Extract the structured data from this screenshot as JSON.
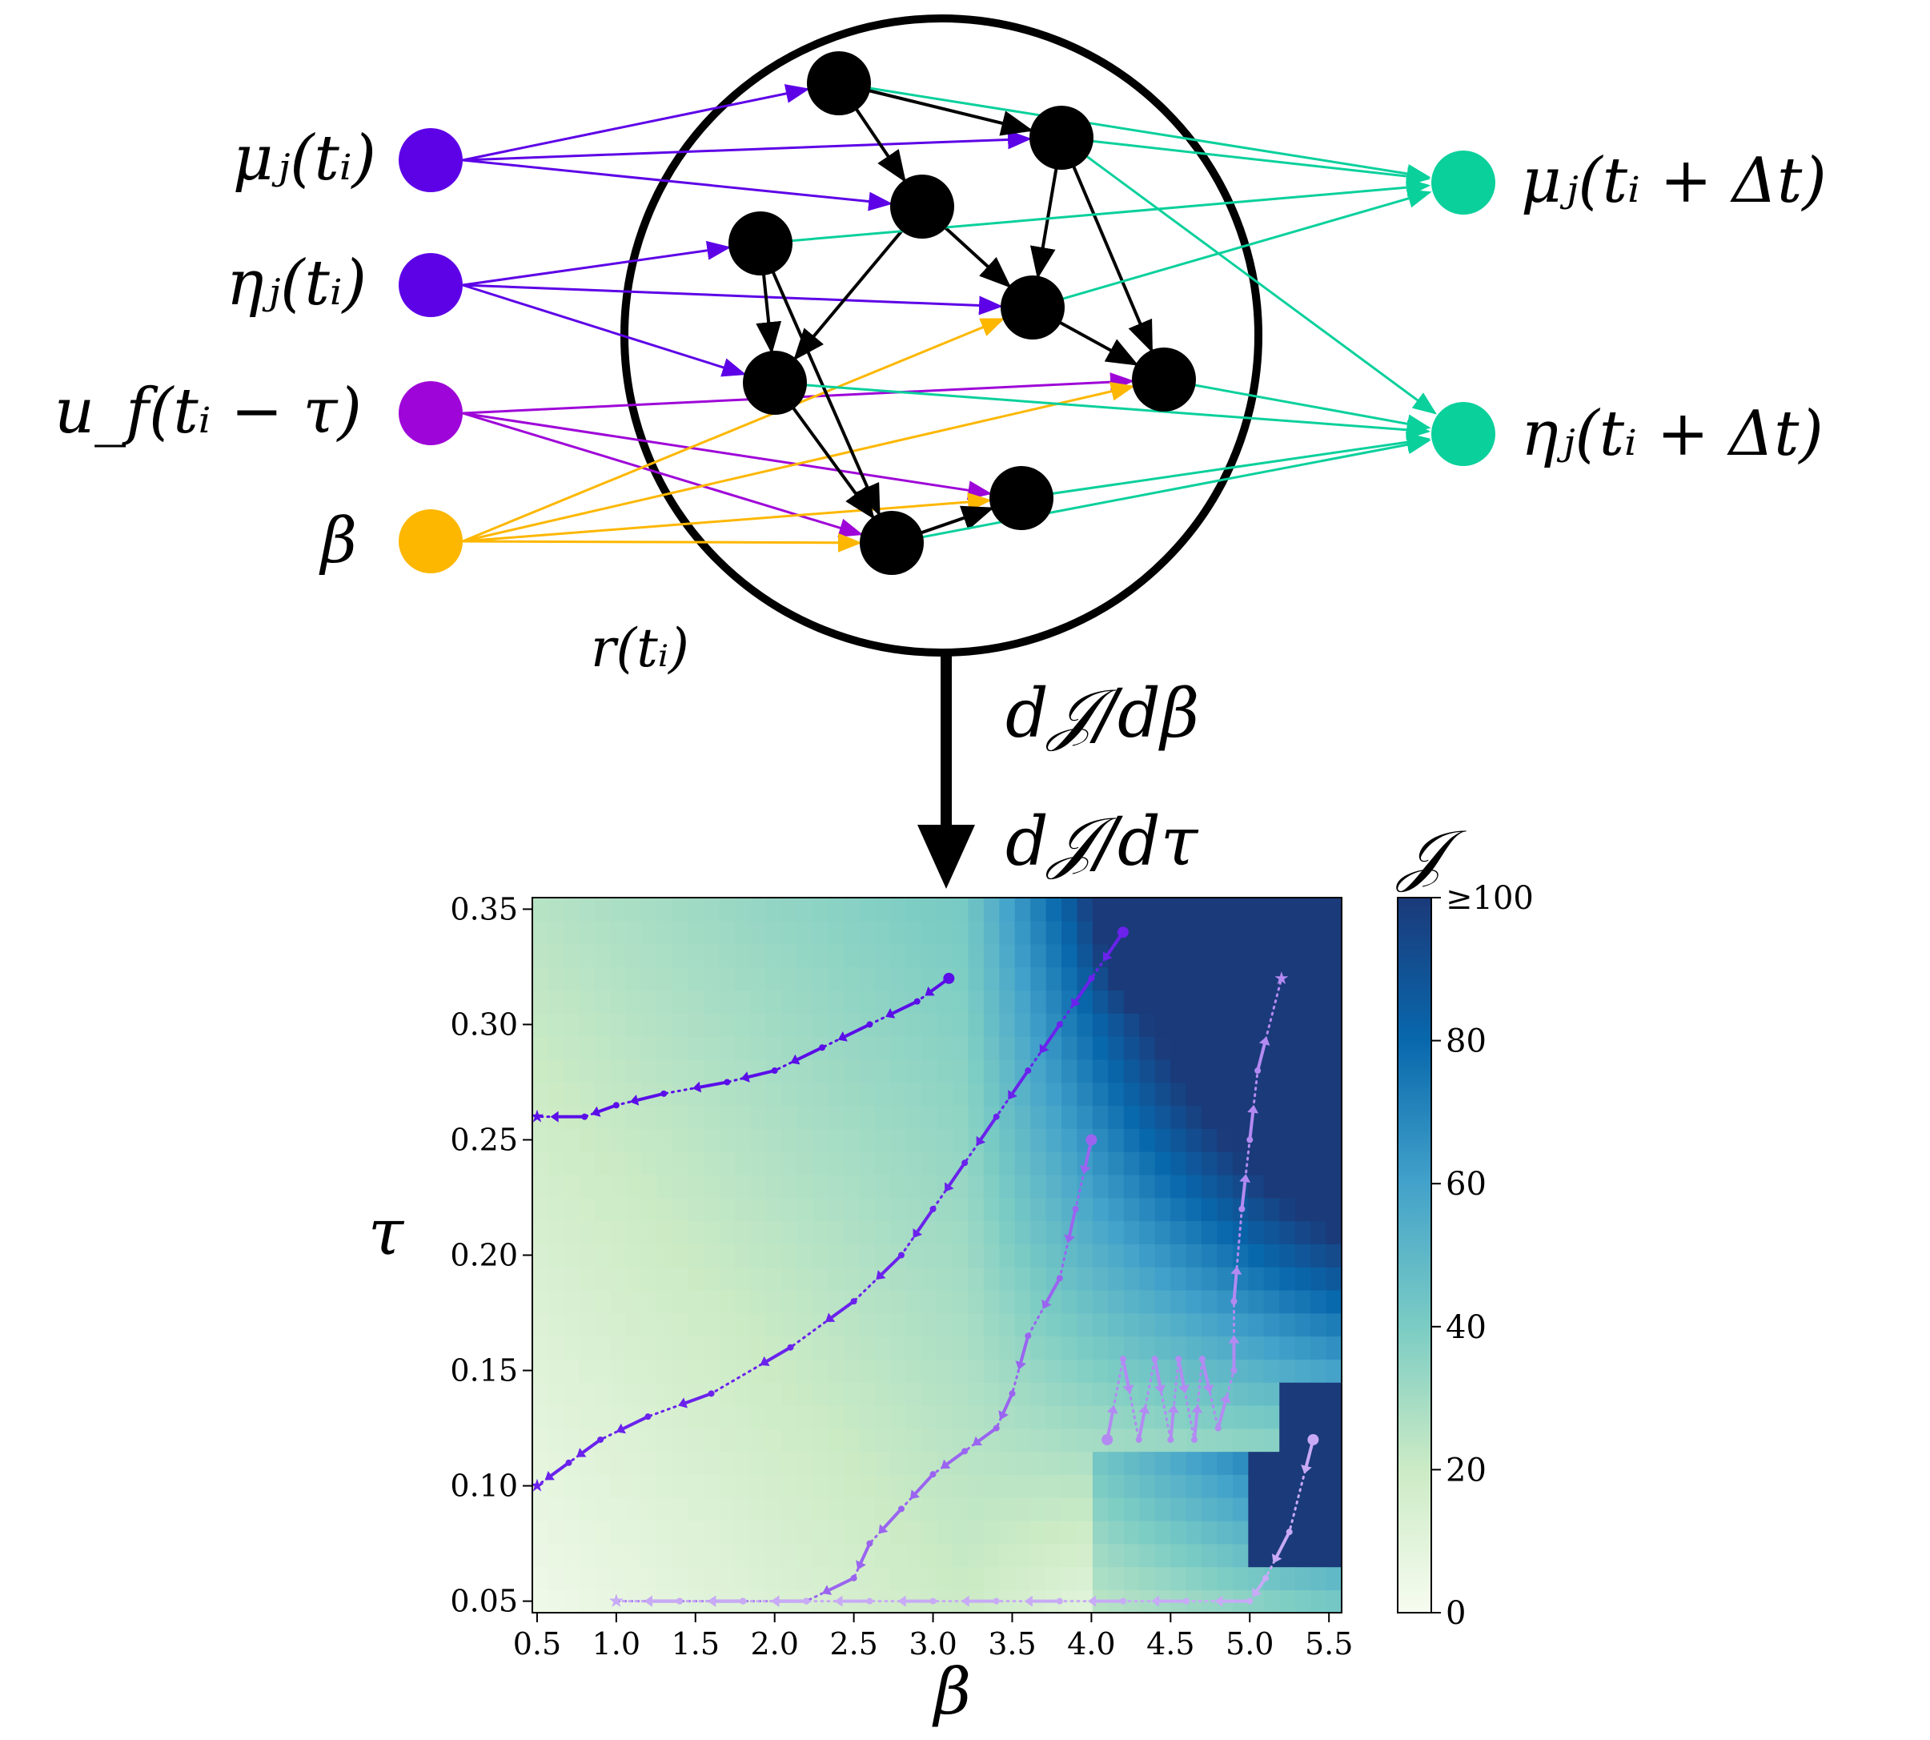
{
  "inputs": [
    {
      "label": "μⱼ(tᵢ)",
      "color": "#5d02e7"
    },
    {
      "label": "ηⱼ(tᵢ)",
      "color": "#5d02e7"
    },
    {
      "label": "u_f(tᵢ − τ)",
      "color": "#9e05d8"
    },
    {
      "label": "β",
      "color": "#fdb700"
    }
  ],
  "outputs": [
    {
      "label": "μⱼ(tᵢ + Δt)",
      "color": "#0ad09c"
    },
    {
      "label": "ηⱼ(tᵢ + Δt)",
      "color": "#0ad09c"
    }
  ],
  "reservoir_label": "r(tᵢ)",
  "gradient_labels": [
    "d𝒥/dβ",
    "d𝒥/dτ"
  ],
  "chart_data": {
    "type": "heatmap",
    "xlabel": "β",
    "ylabel": "τ",
    "x_ticks": [
      "0.5",
      "1.0",
      "1.5",
      "2.0",
      "2.5",
      "3.0",
      "3.5",
      "4.0",
      "4.5",
      "5.0",
      "5.5"
    ],
    "y_ticks": [
      "0.05",
      "0.10",
      "0.15",
      "0.20",
      "0.25",
      "0.30",
      "0.35"
    ],
    "xlim": [
      0.47,
      5.58
    ],
    "ylim": [
      0.045,
      0.355
    ],
    "colorbar": {
      "title": "𝒥",
      "ticks": [
        "0",
        "20",
        "40",
        "60",
        "80",
        "≥100"
      ],
      "range": [
        0,
        100
      ],
      "colors": [
        "#f7fcf0",
        "#ccebc5",
        "#7bccc4",
        "#43a2ca",
        "#0868ac",
        "#1b3a7a"
      ]
    },
    "trajectories": [
      {
        "color": "#5a0ee8",
        "points": [
          [
            3.1,
            0.32
          ],
          [
            2.9,
            0.31
          ],
          [
            2.6,
            0.3
          ],
          [
            2.3,
            0.29
          ],
          [
            2.0,
            0.28
          ],
          [
            1.7,
            0.275
          ],
          [
            1.3,
            0.27
          ],
          [
            1.0,
            0.265
          ],
          [
            0.8,
            0.26
          ],
          [
            0.5,
            0.26
          ]
        ]
      },
      {
        "color": "#6a22ec",
        "points": [
          [
            4.2,
            0.34
          ],
          [
            4.0,
            0.32
          ],
          [
            3.8,
            0.3
          ],
          [
            3.6,
            0.28
          ],
          [
            3.4,
            0.26
          ],
          [
            3.2,
            0.24
          ],
          [
            3.0,
            0.22
          ],
          [
            2.8,
            0.2
          ],
          [
            2.5,
            0.18
          ],
          [
            2.1,
            0.16
          ],
          [
            1.6,
            0.14
          ],
          [
            1.2,
            0.13
          ],
          [
            0.9,
            0.12
          ],
          [
            0.7,
            0.11
          ],
          [
            0.5,
            0.1
          ]
        ]
      },
      {
        "color": "#9a64f0",
        "points": [
          [
            4.0,
            0.25
          ],
          [
            3.9,
            0.22
          ],
          [
            3.8,
            0.19
          ],
          [
            3.6,
            0.165
          ],
          [
            3.5,
            0.14
          ],
          [
            3.4,
            0.125
          ],
          [
            3.2,
            0.115
          ],
          [
            3.0,
            0.105
          ],
          [
            2.8,
            0.09
          ],
          [
            2.6,
            0.075
          ],
          [
            2.5,
            0.06
          ],
          [
            2.2,
            0.05
          ],
          [
            1.8,
            0.05
          ],
          [
            1.4,
            0.05
          ],
          [
            1.0,
            0.05
          ]
        ]
      },
      {
        "color": "#b38af2",
        "points": [
          [
            4.1,
            0.12
          ],
          [
            4.2,
            0.155
          ],
          [
            4.3,
            0.12
          ],
          [
            4.4,
            0.155
          ],
          [
            4.5,
            0.12
          ],
          [
            4.55,
            0.155
          ],
          [
            4.65,
            0.12
          ],
          [
            4.7,
            0.155
          ],
          [
            4.8,
            0.125
          ],
          [
            4.9,
            0.15
          ],
          [
            4.9,
            0.18
          ],
          [
            4.95,
            0.22
          ],
          [
            5.0,
            0.25
          ],
          [
            5.05,
            0.28
          ],
          [
            5.2,
            0.32
          ]
        ]
      },
      {
        "color": "#c8aaf6",
        "points": [
          [
            5.4,
            0.12
          ],
          [
            5.25,
            0.08
          ],
          [
            5.1,
            0.06
          ],
          [
            5.0,
            0.05
          ],
          [
            4.6,
            0.05
          ],
          [
            4.2,
            0.05
          ],
          [
            3.8,
            0.05
          ],
          [
            3.4,
            0.05
          ],
          [
            3.0,
            0.05
          ],
          [
            2.6,
            0.05
          ],
          [
            2.2,
            0.05
          ],
          [
            1.8,
            0.05
          ],
          [
            1.4,
            0.05
          ],
          [
            1.0,
            0.05
          ]
        ]
      }
    ]
  }
}
